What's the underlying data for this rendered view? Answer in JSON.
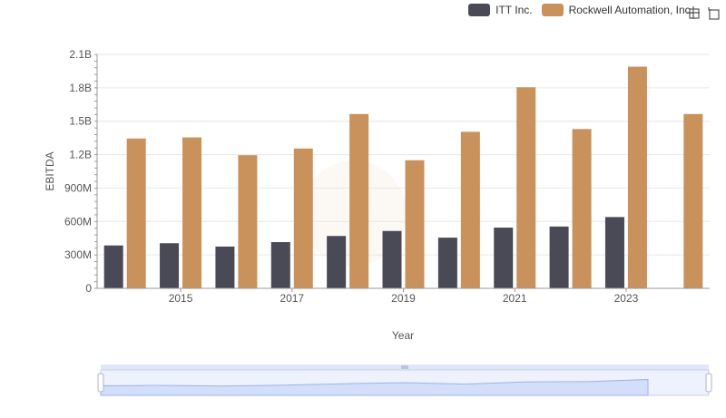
{
  "legend": {
    "items": [
      {
        "label": "ITT Inc.",
        "color": "#4a4a56"
      },
      {
        "label": "Rockwell Automation, Inc.",
        "color": "#c9915c"
      }
    ]
  },
  "toolbar": {
    "icons": [
      "zoom-icon",
      "restore-icon"
    ]
  },
  "chart_data": {
    "type": "bar",
    "categories": [
      "2014",
      "2015",
      "2016",
      "2017",
      "2018",
      "2019",
      "2020",
      "2021",
      "2022",
      "2023",
      "2024"
    ],
    "x_tick_labels": [
      "2015",
      "2017",
      "2019",
      "2021",
      "2023"
    ],
    "xlabel": "Year",
    "ylabel": "EBITDA",
    "ylim": [
      0,
      2100000000
    ],
    "y_ticks": [
      0,
      300000000,
      600000000,
      900000000,
      1200000000,
      1500000000,
      1800000000,
      2100000000
    ],
    "y_tick_labels": [
      "0",
      "300M",
      "600M",
      "900M",
      "1.2B",
      "1.5B",
      "1.8B",
      "2.1B"
    ],
    "grid": true,
    "legend_position": "top-right",
    "series": [
      {
        "name": "ITT Inc.",
        "color": "#4a4a56",
        "values": [
          385000000,
          405000000,
          375000000,
          415000000,
          470000000,
          515000000,
          455000000,
          545000000,
          555000000,
          640000000,
          null
        ]
      },
      {
        "name": "Rockwell Automation, Inc.",
        "color": "#c9915c",
        "values": [
          1345000000,
          1355000000,
          1195000000,
          1255000000,
          1565000000,
          1150000000,
          1405000000,
          1805000000,
          1430000000,
          1990000000,
          1565000000
        ]
      }
    ]
  }
}
